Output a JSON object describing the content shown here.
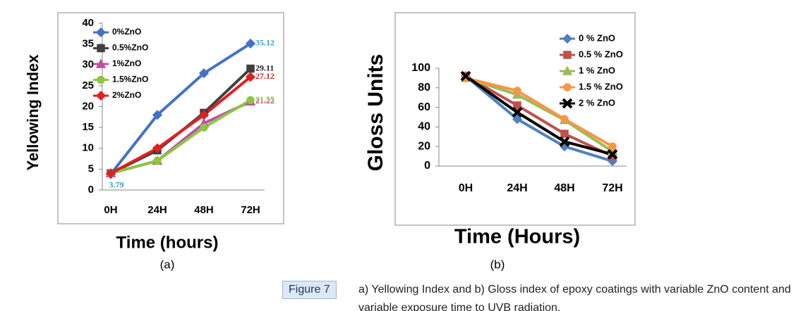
{
  "chart_data": [
    {
      "type": "line",
      "panel_label": "(a)",
      "x_label": "Time (hours)",
      "y_label": "Yellowing Index",
      "categories": [
        "0H",
        "24H",
        "48H",
        "72H"
      ],
      "ylim": [
        0,
        40
      ],
      "yticks": [
        0,
        5,
        10,
        15,
        20,
        25,
        30,
        35,
        40
      ],
      "grid": false,
      "legend": "upper left",
      "series": [
        {
          "name": "0%ZnO",
          "color": "#4472c4",
          "marker": "diamond",
          "values": [
            3.79,
            18,
            28,
            35.12
          ],
          "show_labels": [
            true,
            false,
            false,
            true
          ],
          "label_color": "#2aa3dc"
        },
        {
          "name": "0.5%ZnO",
          "color": "#404040",
          "marker": "square",
          "values": [
            4,
            9.5,
            18.5,
            29.11
          ],
          "show_labels": [
            false,
            false,
            false,
            true
          ],
          "label_color": "#202020"
        },
        {
          "name": "1%ZnO",
          "color": "#c04fa8",
          "marker": "triangle",
          "values": [
            4,
            7,
            16,
            21.22
          ],
          "show_labels": [
            false,
            false,
            false,
            true
          ],
          "label_color": "#c04fa8"
        },
        {
          "name": "1.5%ZnO",
          "color": "#8dc63f",
          "marker": "circle",
          "values": [
            4,
            7,
            15,
            21.55
          ],
          "show_labels": [
            false,
            false,
            false,
            true
          ],
          "label_color": "#8dc63f"
        },
        {
          "name": "2%ZnO",
          "color": "#e02020",
          "marker": "diamond",
          "values": [
            4,
            10,
            18,
            27.12
          ],
          "show_labels": [
            false,
            false,
            false,
            true
          ],
          "label_color": "#e02020"
        }
      ]
    },
    {
      "type": "line",
      "panel_label": "(b)",
      "x_label": "Time (Hours)",
      "y_label": "Gloss Units",
      "categories": [
        "0H",
        "24H",
        "48H",
        "72H"
      ],
      "ylim": [
        0,
        100
      ],
      "yticks": [
        0,
        20,
        40,
        60,
        80,
        100
      ],
      "grid": false,
      "legend": "upper right",
      "series": [
        {
          "name": "0 % ZnO",
          "color": "#4f81bd",
          "marker": "diamond",
          "values": [
            92,
            48,
            20,
            5
          ]
        },
        {
          "name": "0.5 % ZnO",
          "color": "#c0504d",
          "marker": "square",
          "values": [
            92,
            62,
            33,
            10
          ]
        },
        {
          "name": "1 % ZnO",
          "color": "#9bbb59",
          "marker": "triangle",
          "values": [
            90,
            73,
            47,
            15
          ]
        },
        {
          "name": "1.5 % ZnO",
          "color": "#f79646",
          "marker": "circle",
          "values": [
            90,
            77,
            48,
            20
          ]
        },
        {
          "name": "2 % ZnO",
          "color": "#000000",
          "marker": "x",
          "values": [
            92,
            55,
            25,
            12
          ]
        }
      ]
    }
  ],
  "caption": {
    "label": "Figure 7",
    "text": "a) Yellowing Index and b) Gloss index of epoxy coatings with variable ZnO content and variable exposure time to UVB radiation."
  }
}
